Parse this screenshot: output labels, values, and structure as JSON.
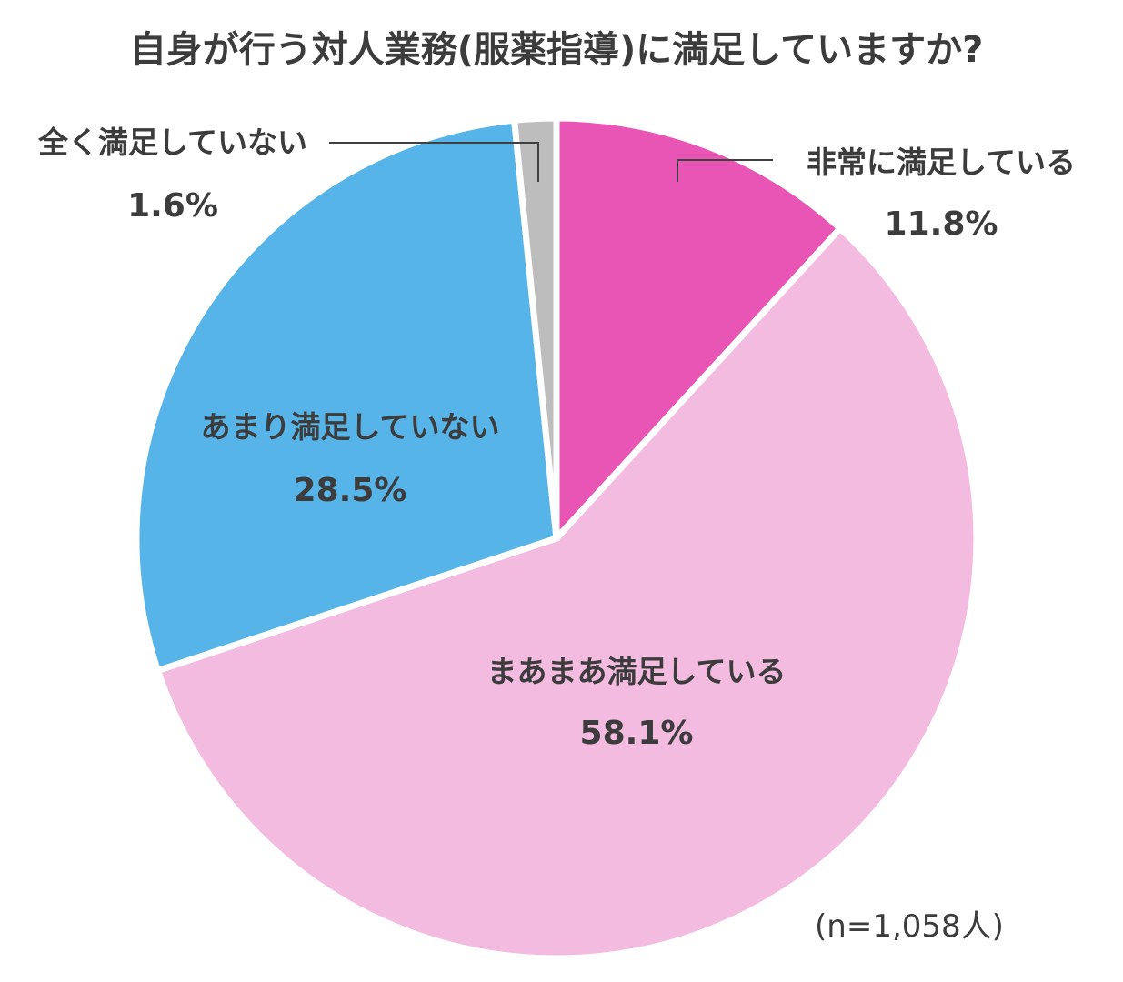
{
  "chart_data": {
    "type": "pie",
    "title": "自身が行う対人業務(服薬指導)に満足していますか?",
    "note": "(n=1,058人)",
    "slices": [
      {
        "label": "非常に満足している",
        "value": 11.8,
        "value_label": "11.8%",
        "color": "#e855b4"
      },
      {
        "label": "まあまあ満足している",
        "value": 58.1,
        "value_label": "58.1%",
        "color": "#f4bbe0"
      },
      {
        "label": "あまり満足していない",
        "value": 28.5,
        "value_label": "28.5%",
        "color": "#56b4e8"
      },
      {
        "label": "全く満足していない",
        "value": 1.6,
        "value_label": "1.6%",
        "color": "#bdbdbd"
      }
    ]
  }
}
